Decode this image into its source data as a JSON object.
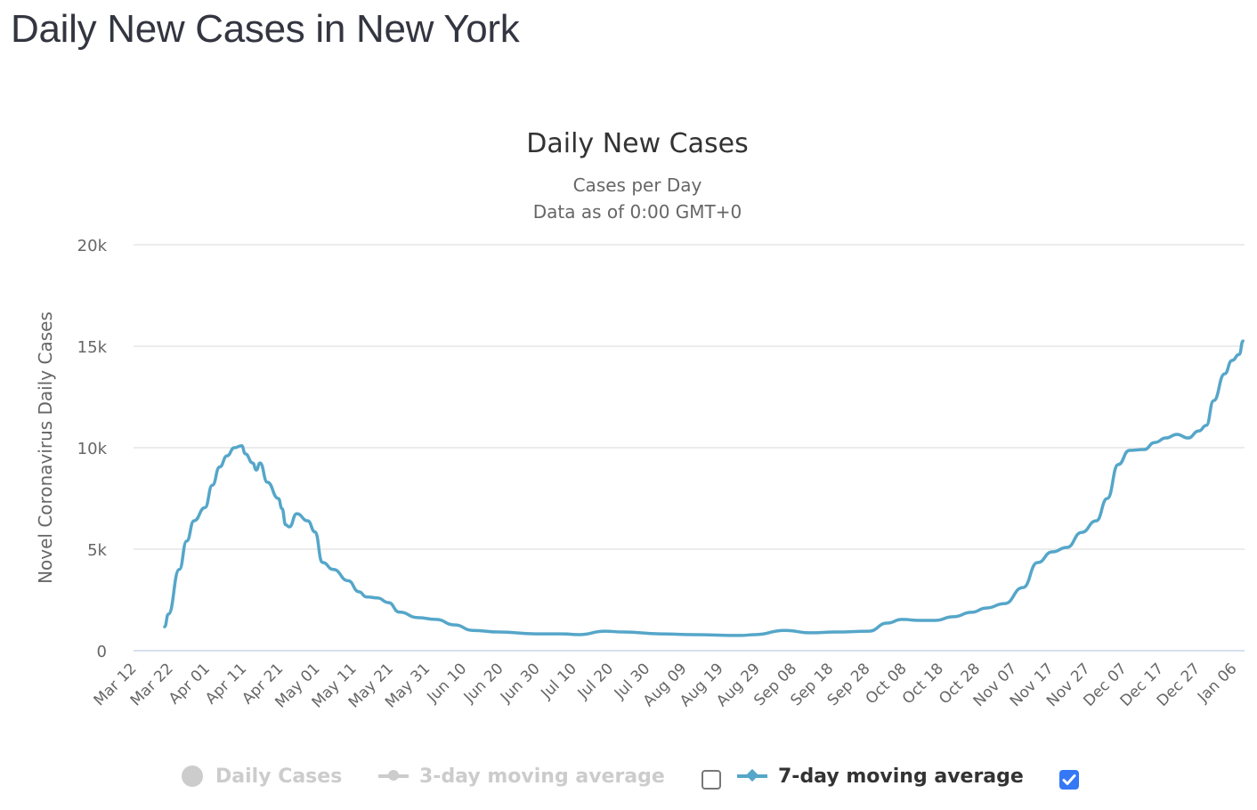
{
  "page": {
    "title": "Daily New Cases in New York"
  },
  "legend": {
    "items": [
      {
        "label": "Daily Cases",
        "visible": false,
        "symbol": "circle"
      },
      {
        "label": "3-day moving average",
        "visible": false,
        "symbol": "line-circle",
        "checkbox_checked": false
      },
      {
        "label": "7-day moving average",
        "visible": true,
        "symbol": "line-diamond",
        "checkbox_checked": true
      }
    ]
  },
  "colors": {
    "series": "#55a6c9",
    "hidden": "#cccccc",
    "grid": "#e6e6e6",
    "axis": "#ccd6eb",
    "checkbox": "#3478f6"
  },
  "chart_data": {
    "type": "line",
    "title": "Daily New Cases",
    "subtitle": [
      "Cases per Day",
      "Data as of 0:00 GMT+0"
    ],
    "xlabel": "",
    "ylabel": "Novel Coronavirus Daily Cases",
    "ylim": [
      0,
      20000
    ],
    "yticks": [
      0,
      5000,
      10000,
      15000,
      20000
    ],
    "ytick_labels": [
      "0",
      "5k",
      "10k",
      "15k",
      "20k"
    ],
    "xtick_labels": [
      "Mar 12",
      "Mar 22",
      "Apr 01",
      "Apr 11",
      "Apr 21",
      "May 01",
      "May 11",
      "May 21",
      "May 31",
      "Jun 10",
      "Jun 20",
      "Jun 30",
      "Jul 10",
      "Jul 20",
      "Jul 30",
      "Aug 09",
      "Aug 19",
      "Aug 29",
      "Sep 08",
      "Sep 18",
      "Sep 28",
      "Oct 08",
      "Oct 18",
      "Oct 28",
      "Nov 07",
      "Nov 17",
      "Nov 27",
      "Dec 07",
      "Dec 17",
      "Dec 27",
      "Jan 06"
    ],
    "x_start": "Mar 12",
    "x_day_span": 300,
    "grid": true,
    "legend_position": "bottom",
    "series": [
      {
        "name": "7-day moving average",
        "visible": true,
        "points": [
          {
            "day": 8,
            "date": "Mar 20",
            "value": 1180
          },
          {
            "day": 9,
            "date": "Mar 21",
            "value": 1800
          },
          {
            "day": 12,
            "date": "Mar 24",
            "value": 4000
          },
          {
            "day": 14,
            "date": "Mar 26",
            "value": 5400
          },
          {
            "day": 16,
            "date": "Mar 28",
            "value": 6400
          },
          {
            "day": 19,
            "date": "Mar 31",
            "value": 7050
          },
          {
            "day": 21,
            "date": "Apr 02",
            "value": 8150
          },
          {
            "day": 23,
            "date": "Apr 04",
            "value": 9050
          },
          {
            "day": 25,
            "date": "Apr 06",
            "value": 9600
          },
          {
            "day": 27,
            "date": "Apr 08",
            "value": 10000
          },
          {
            "day": 29,
            "date": "Apr 10",
            "value": 10100
          },
          {
            "day": 30,
            "date": "Apr 11",
            "value": 9700
          },
          {
            "day": 32,
            "date": "Apr 13",
            "value": 9250
          },
          {
            "day": 33,
            "date": "Apr 14",
            "value": 8900
          },
          {
            "day": 34,
            "date": "Apr 15",
            "value": 9250
          },
          {
            "day": 36,
            "date": "Apr 17",
            "value": 8300
          },
          {
            "day": 39,
            "date": "Apr 20",
            "value": 7500
          },
          {
            "day": 40,
            "date": "Apr 21",
            "value": 7000
          },
          {
            "day": 41,
            "date": "Apr 22",
            "value": 6200
          },
          {
            "day": 42,
            "date": "Apr 23",
            "value": 6100
          },
          {
            "day": 44,
            "date": "Apr 25",
            "value": 6750
          },
          {
            "day": 47,
            "date": "Apr 28",
            "value": 6400
          },
          {
            "day": 49,
            "date": "Apr 30",
            "value": 5850
          },
          {
            "day": 51,
            "date": "May 02",
            "value": 4350
          },
          {
            "day": 54,
            "date": "May 05",
            "value": 4000
          },
          {
            "day": 58,
            "date": "May 09",
            "value": 3450
          },
          {
            "day": 61,
            "date": "May 12",
            "value": 2900
          },
          {
            "day": 63,
            "date": "May 14",
            "value": 2650
          },
          {
            "day": 66,
            "date": "May 17",
            "value": 2600
          },
          {
            "day": 69,
            "date": "May 20",
            "value": 2370
          },
          {
            "day": 72,
            "date": "May 23",
            "value": 1900
          },
          {
            "day": 77,
            "date": "May 28",
            "value": 1630
          },
          {
            "day": 82,
            "date": "Jun 02",
            "value": 1540
          },
          {
            "day": 87,
            "date": "Jun 07",
            "value": 1270
          },
          {
            "day": 92,
            "date": "Jun 12",
            "value": 1000
          },
          {
            "day": 99,
            "date": "Jun 19",
            "value": 920
          },
          {
            "day": 109,
            "date": "Jun 29",
            "value": 830
          },
          {
            "day": 116,
            "date": "Jul 06",
            "value": 830
          },
          {
            "day": 121,
            "date": "Jul 11",
            "value": 790
          },
          {
            "day": 128,
            "date": "Jul 18",
            "value": 960
          },
          {
            "day": 133,
            "date": "Jul 23",
            "value": 920
          },
          {
            "day": 143,
            "date": "Aug 02",
            "value": 830
          },
          {
            "day": 152,
            "date": "Aug 11",
            "value": 790
          },
          {
            "day": 165,
            "date": "Aug 24",
            "value": 750
          },
          {
            "day": 169,
            "date": "Aug 28",
            "value": 790
          },
          {
            "day": 177,
            "date": "Sep 05",
            "value": 1000
          },
          {
            "day": 184,
            "date": "Sep 12",
            "value": 880
          },
          {
            "day": 191,
            "date": "Sep 19",
            "value": 920
          },
          {
            "day": 200,
            "date": "Sep 28",
            "value": 960
          },
          {
            "day": 205,
            "date": "Oct 03",
            "value": 1360
          },
          {
            "day": 209,
            "date": "Oct 07",
            "value": 1540
          },
          {
            "day": 214,
            "date": "Oct 12",
            "value": 1490
          },
          {
            "day": 218,
            "date": "Oct 16",
            "value": 1490
          },
          {
            "day": 223,
            "date": "Oct 21",
            "value": 1670
          },
          {
            "day": 228,
            "date": "Oct 26",
            "value": 1890
          },
          {
            "day": 232,
            "date": "Oct 30",
            "value": 2100
          },
          {
            "day": 237,
            "date": "Nov 04",
            "value": 2320
          },
          {
            "day": 242,
            "date": "Nov 09",
            "value": 3110
          },
          {
            "day": 246,
            "date": "Nov 13",
            "value": 4340
          },
          {
            "day": 250,
            "date": "Nov 17",
            "value": 4870
          },
          {
            "day": 254,
            "date": "Nov 21",
            "value": 5090
          },
          {
            "day": 258,
            "date": "Nov 25",
            "value": 5830
          },
          {
            "day": 262,
            "date": "Nov 29",
            "value": 6400
          },
          {
            "day": 265,
            "date": "Dec 02",
            "value": 7500
          },
          {
            "day": 268,
            "date": "Dec 05",
            "value": 9170
          },
          {
            "day": 271,
            "date": "Dec 08",
            "value": 9870
          },
          {
            "day": 275,
            "date": "Dec 12",
            "value": 9910
          },
          {
            "day": 278,
            "date": "Dec 15",
            "value": 10260
          },
          {
            "day": 281,
            "date": "Dec 18",
            "value": 10480
          },
          {
            "day": 284,
            "date": "Dec 21",
            "value": 10660
          },
          {
            "day": 287,
            "date": "Dec 24",
            "value": 10480
          },
          {
            "day": 290,
            "date": "Dec 27",
            "value": 10830
          },
          {
            "day": 292,
            "date": "Dec 29",
            "value": 11100
          },
          {
            "day": 294,
            "date": "Dec 31",
            "value": 12320
          },
          {
            "day": 297,
            "date": "Jan 03",
            "value": 13640
          },
          {
            "day": 299,
            "date": "Jan 05",
            "value": 14300
          },
          {
            "day": 301,
            "date": "Jan 07",
            "value": 14600
          },
          {
            "day": 302,
            "date": "Jan 08",
            "value": 15260
          }
        ]
      },
      {
        "name": "Daily Cases",
        "visible": false,
        "points": []
      },
      {
        "name": "3-day moving average",
        "visible": false,
        "points": []
      }
    ]
  }
}
